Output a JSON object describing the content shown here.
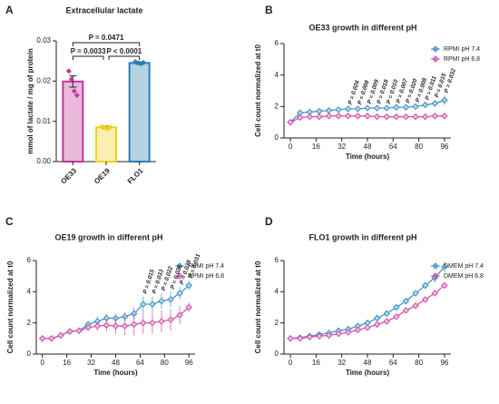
{
  "chart_data": [
    {
      "type": "bar",
      "panel": "A",
      "title": "Extracellular lactate",
      "y_label": "mmol of lactate / mg of protein",
      "categories": [
        "OE33",
        "OE19",
        "FLO1"
      ],
      "values": [
        0.0199,
        0.0085,
        0.0245
      ],
      "errors": [
        0.0014,
        0.0003,
        0.0003
      ],
      "points": [
        [
          0.0225,
          0.0205,
          0.0175,
          0.0165
        ],
        [
          0.0087,
          0.0084,
          0.0082,
          0.0086
        ],
        [
          0.0248,
          0.0245,
          0.0243,
          0.0246
        ]
      ],
      "colors": [
        "#c2379a",
        "#f0d020",
        "#2a7fb0"
      ],
      "ylim": [
        0,
        0.03
      ],
      "yticks": [
        {
          "value": 0,
          "label": "0.00"
        },
        {
          "value": 0.01,
          "label": "0.01"
        },
        {
          "value": 0.02,
          "label": "0.02"
        },
        {
          "value": 0.03,
          "label": "0.03"
        }
      ],
      "annotations": [
        "P = 0.0471",
        "P = 0.0033",
        "P < 0.0001"
      ]
    },
    {
      "type": "line",
      "panel": "B",
      "title": "OE33 growth in different pH",
      "x_label": "Time (hours)",
      "y_label": "Cell count normalized at t0",
      "x": [
        0,
        6,
        12,
        18,
        24,
        30,
        36,
        42,
        48,
        54,
        60,
        66,
        72,
        78,
        84,
        90,
        96
      ],
      "series": [
        {
          "name": "RPMI pH 7.4",
          "color": "#3a8ec4",
          "values": [
            1.0,
            1.6,
            1.65,
            1.7,
            1.75,
            1.8,
            1.85,
            1.85,
            1.9,
            1.9,
            1.9,
            1.95,
            1.95,
            2.0,
            2.1,
            2.2,
            2.4
          ],
          "errors": [
            0.05,
            0.1,
            0.1,
            0.1,
            0.1,
            0.1,
            0.1,
            0.1,
            0.1,
            0.1,
            0.1,
            0.1,
            0.1,
            0.1,
            0.15,
            0.2,
            0.3
          ]
        },
        {
          "name": "RPMI pH 6.8",
          "color": "#d04aa8",
          "values": [
            1.0,
            1.3,
            1.35,
            1.35,
            1.4,
            1.4,
            1.4,
            1.4,
            1.4,
            1.35,
            1.35,
            1.35,
            1.35,
            1.35,
            1.35,
            1.4,
            1.4
          ],
          "errors": [
            0.05,
            0.15,
            0.15,
            0.15,
            0.15,
            0.15,
            0.15,
            0.15,
            0.15,
            0.15,
            0.15,
            0.15,
            0.15,
            0.15,
            0.15,
            0.15,
            0.15
          ]
        }
      ],
      "xlim": [
        -4,
        100
      ],
      "xticks": [
        0,
        16,
        32,
        48,
        64,
        80,
        96
      ],
      "ylim": [
        0,
        6
      ],
      "yticks": [
        0,
        2,
        4,
        6
      ],
      "legend": "upper right",
      "annotations": [
        "P = 0.026",
        "P = 0.008",
        "P = 0.009",
        "P = 0.018",
        "P = 0.010",
        "P = 0.007",
        "P = 0.020",
        "P = 0.008",
        "P = 0.011",
        "P = 0.015",
        "P = 0.032"
      ]
    },
    {
      "type": "line",
      "panel": "C",
      "title": "OE19 growth in different pH",
      "x_label": "Time (hours)",
      "y_label": "Cell count normalized at t0",
      "x": [
        0,
        6,
        12,
        18,
        24,
        30,
        36,
        42,
        48,
        54,
        60,
        66,
        72,
        78,
        84,
        90,
        96
      ],
      "series": [
        {
          "name": "RPMI pH 7.4",
          "color": "#3a8ec4",
          "values": [
            1.0,
            1.0,
            1.2,
            1.45,
            1.5,
            1.9,
            2.1,
            2.3,
            2.3,
            2.4,
            2.6,
            3.2,
            3.2,
            3.4,
            3.5,
            3.9,
            4.4
          ],
          "errors": [
            0.05,
            0.05,
            0.05,
            0.1,
            0.1,
            0.2,
            0.3,
            0.3,
            0.3,
            0.3,
            0.4,
            0.5,
            0.5,
            0.5,
            0.5,
            0.4,
            0.3
          ]
        },
        {
          "name": "RPMI pH 6.8",
          "color": "#d04aa8",
          "values": [
            1.0,
            1.0,
            1.2,
            1.45,
            1.5,
            1.7,
            1.8,
            1.85,
            1.8,
            1.8,
            1.9,
            2.0,
            2.0,
            2.1,
            2.2,
            2.5,
            3.0
          ],
          "errors": [
            0.05,
            0.05,
            0.05,
            0.1,
            0.1,
            0.2,
            0.3,
            0.4,
            0.5,
            0.6,
            0.7,
            0.7,
            0.7,
            0.7,
            0.7,
            0.6,
            0.3
          ]
        }
      ],
      "xlim": [
        -4,
        100
      ],
      "xticks": [
        0,
        16,
        32,
        48,
        64,
        80,
        96
      ],
      "ylim": [
        0,
        6
      ],
      "yticks": [
        0,
        2,
        4,
        6
      ],
      "legend": "upper right",
      "annotations": [
        "P = 0.015",
        "P = 0.033",
        "P = 0.022",
        "P = 0.026",
        "P = 0.038",
        "P = 0.031"
      ]
    },
    {
      "type": "line",
      "panel": "D",
      "title": "FLO1 growth in different pH",
      "x_label": "Time (hours)",
      "y_label": "Cell count normalized at t0",
      "x": [
        0,
        6,
        12,
        18,
        24,
        30,
        36,
        42,
        48,
        54,
        60,
        66,
        72,
        78,
        84,
        90,
        96
      ],
      "series": [
        {
          "name": "DMEM pH 7.4",
          "color": "#3a8ec4",
          "values": [
            1.0,
            1.05,
            1.15,
            1.25,
            1.35,
            1.5,
            1.6,
            1.8,
            2.0,
            2.3,
            2.6,
            3.0,
            3.4,
            3.9,
            4.4,
            4.9,
            5.6
          ],
          "errors": [
            0.05,
            0.05,
            0.05,
            0.05,
            0.05,
            0.1,
            0.1,
            0.1,
            0.1,
            0.15,
            0.15,
            0.2,
            0.2,
            0.2,
            0.25,
            0.3,
            0.35
          ]
        },
        {
          "name": "DMEM pH 6.8",
          "color": "#d04aa8",
          "values": [
            1.0,
            1.0,
            1.1,
            1.15,
            1.2,
            1.3,
            1.4,
            1.55,
            1.7,
            1.9,
            2.1,
            2.4,
            2.8,
            3.1,
            3.5,
            3.9,
            4.4
          ],
          "errors": [
            0.05,
            0.05,
            0.05,
            0.05,
            0.05,
            0.05,
            0.1,
            0.1,
            0.1,
            0.1,
            0.1,
            0.15,
            0.15,
            0.15,
            0.2,
            0.2,
            0.2
          ]
        }
      ],
      "xlim": [
        -4,
        100
      ],
      "xticks": [
        0,
        16,
        32,
        48,
        64,
        80,
        96
      ],
      "ylim": [
        0,
        6
      ],
      "yticks": [
        0,
        2,
        4,
        6
      ],
      "legend": "upper right"
    }
  ]
}
